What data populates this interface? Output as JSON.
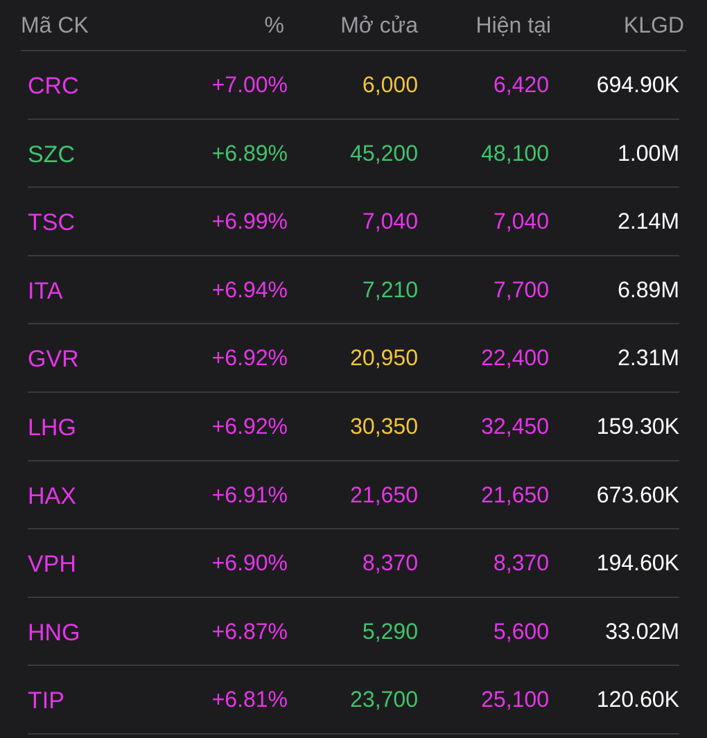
{
  "colors": {
    "background": "#1c1c1e",
    "divider": "#3a3a3c",
    "header_text": "#9a9a9f",
    "ceiling": "#e535e8",
    "up": "#3fc46b",
    "reference": "#f2c53d",
    "volume": "#ffffff"
  },
  "header": {
    "symbol": "Mã CK",
    "percent": "%",
    "open": "Mở cửa",
    "current": "Hiện tại",
    "volume": "KLGD"
  },
  "rows": [
    {
      "symbol": "CRC",
      "symbol_color": "ceiling",
      "percent": "+7.00%",
      "percent_color": "ceiling",
      "open": "6,000",
      "open_color": "reference",
      "current": "6,420",
      "current_color": "ceiling",
      "volume": "694.90K"
    },
    {
      "symbol": "SZC",
      "symbol_color": "up",
      "percent": "+6.89%",
      "percent_color": "up",
      "open": "45,200",
      "open_color": "up",
      "current": "48,100",
      "current_color": "up",
      "volume": "1.00M"
    },
    {
      "symbol": "TSC",
      "symbol_color": "ceiling",
      "percent": "+6.99%",
      "percent_color": "ceiling",
      "open": "7,040",
      "open_color": "ceiling",
      "current": "7,040",
      "current_color": "ceiling",
      "volume": "2.14M"
    },
    {
      "symbol": "ITA",
      "symbol_color": "ceiling",
      "percent": "+6.94%",
      "percent_color": "ceiling",
      "open": "7,210",
      "open_color": "up",
      "current": "7,700",
      "current_color": "ceiling",
      "volume": "6.89M"
    },
    {
      "symbol": "GVR",
      "symbol_color": "ceiling",
      "percent": "+6.92%",
      "percent_color": "ceiling",
      "open": "20,950",
      "open_color": "reference",
      "current": "22,400",
      "current_color": "ceiling",
      "volume": "2.31M"
    },
    {
      "symbol": "LHG",
      "symbol_color": "ceiling",
      "percent": "+6.92%",
      "percent_color": "ceiling",
      "open": "30,350",
      "open_color": "reference",
      "current": "32,450",
      "current_color": "ceiling",
      "volume": "159.30K"
    },
    {
      "symbol": "HAX",
      "symbol_color": "ceiling",
      "percent": "+6.91%",
      "percent_color": "ceiling",
      "open": "21,650",
      "open_color": "ceiling",
      "current": "21,650",
      "current_color": "ceiling",
      "volume": "673.60K"
    },
    {
      "symbol": "VPH",
      "symbol_color": "ceiling",
      "percent": "+6.90%",
      "percent_color": "ceiling",
      "open": "8,370",
      "open_color": "ceiling",
      "current": "8,370",
      "current_color": "ceiling",
      "volume": "194.60K"
    },
    {
      "symbol": "HNG",
      "symbol_color": "ceiling",
      "percent": "+6.87%",
      "percent_color": "ceiling",
      "open": "5,290",
      "open_color": "up",
      "current": "5,600",
      "current_color": "ceiling",
      "volume": "33.02M"
    },
    {
      "symbol": "TIP",
      "symbol_color": "ceiling",
      "percent": "+6.81%",
      "percent_color": "ceiling",
      "open": "23,700",
      "open_color": "up",
      "current": "25,100",
      "current_color": "ceiling",
      "volume": "120.60K"
    }
  ]
}
